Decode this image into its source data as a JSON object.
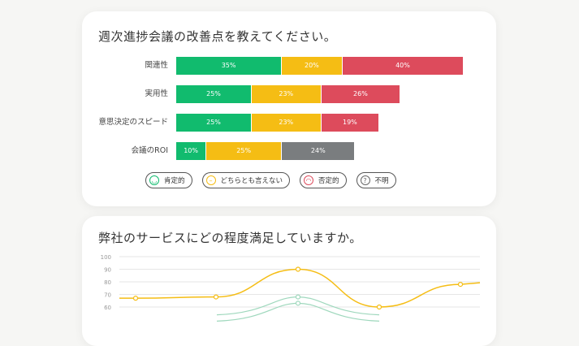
{
  "card1": {
    "title": "週次進捗会議の改善点を教えてください。"
  },
  "legend": [
    {
      "label": "肯定的",
      "color": "#11bb6e",
      "icon": "smile-icon"
    },
    {
      "label": "どちらとも言えない",
      "color": "#f5bd14",
      "icon": "neutral-face-icon"
    },
    {
      "label": "否定的",
      "color": "#dd4b5c",
      "icon": "frown-icon"
    },
    {
      "label": "不明",
      "color": "#666666",
      "icon": "question-icon"
    }
  ],
  "card2": {
    "title": "弊社のサービスにどの程度満足していますか。"
  },
  "chart_data": [
    {
      "type": "bar",
      "orientation": "horizontal-stacked",
      "categories": [
        "関連性",
        "実用性",
        "意思決定のスピード",
        "会議のROI"
      ],
      "series": [
        {
          "name": "肯定的",
          "color": "#11bb6e",
          "values": [
            35,
            25,
            25,
            10
          ]
        },
        {
          "name": "どちらとも言えない",
          "color": "#f5bd14",
          "values": [
            20,
            23,
            23,
            25
          ]
        },
        {
          "name": "否定的",
          "color": "#dd4b5c",
          "values": [
            40,
            26,
            19,
            null
          ]
        },
        {
          "name": "不明",
          "color": "#7a7d7f",
          "values": [
            null,
            null,
            null,
            24
          ]
        }
      ],
      "labels": [
        [
          "35%",
          "20%",
          "40%",
          null
        ],
        [
          "25%",
          "23%",
          "26%",
          null
        ],
        [
          "25%",
          "23%",
          "19%",
          null
        ],
        [
          "10%",
          "25%",
          null,
          "24%"
        ]
      ]
    },
    {
      "type": "line",
      "ylim": [
        60,
        100
      ],
      "yticks": [
        "100",
        "90",
        "80",
        "70",
        "60"
      ],
      "grid": true,
      "series": [
        {
          "color": "#f5bd14",
          "values": [
            67,
            68,
            90,
            60,
            78
          ]
        },
        {
          "color": "#9fd8bd",
          "values": [
            null,
            null,
            68,
            null,
            null
          ]
        },
        {
          "color": "#9fd8bd",
          "values": [
            null,
            null,
            63,
            null,
            null
          ]
        }
      ]
    }
  ]
}
